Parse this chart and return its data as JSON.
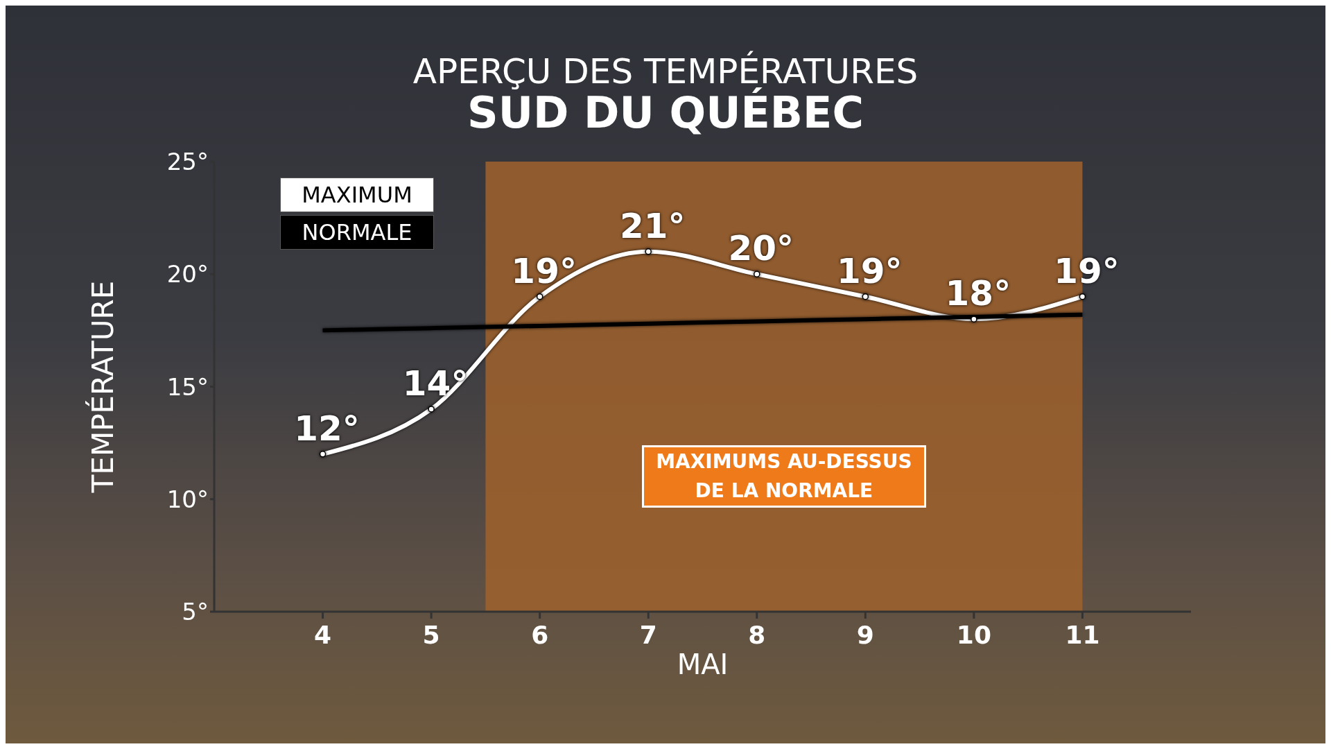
{
  "chart_data": {
    "type": "line",
    "title": "APERÇU DES TEMPÉRATURES",
    "subtitle": "SUD DU QUÉBEC",
    "xlabel": "MAI",
    "ylabel": "TEMPÉRATURE",
    "x": [
      4,
      5,
      6,
      7,
      8,
      9,
      10,
      11
    ],
    "xlim": [
      3,
      12
    ],
    "xticks": [
      4,
      5,
      6,
      7,
      8,
      9,
      10,
      11
    ],
    "ylim": [
      5,
      25
    ],
    "yticks": [
      {
        "value": 5,
        "label": "5°"
      },
      {
        "value": 10,
        "label": "10°"
      },
      {
        "value": 15,
        "label": "15°"
      },
      {
        "value": 20,
        "label": "20°"
      },
      {
        "value": 25,
        "label": "25°"
      }
    ],
    "series": [
      {
        "name": "MAXIMUM",
        "color": "#ffffff",
        "marker": "circle",
        "values": [
          12,
          14,
          19,
          21,
          20,
          19,
          18,
          19
        ],
        "value_labels": [
          "12°",
          "14°",
          "19°",
          "21°",
          "20°",
          "19°",
          "18°",
          "19°"
        ]
      },
      {
        "name": "NORMALE",
        "color": "#000000",
        "marker": "none",
        "values": [
          17.5,
          17.6,
          17.7,
          17.8,
          17.9,
          18.0,
          18.1,
          18.2
        ]
      }
    ],
    "bands": [
      {
        "axis": "x",
        "from": 5.5,
        "to": 11,
        "label": "MAXIMUMS AU-DESSUS DE LA NORMALE",
        "color": "#a0612c"
      }
    ],
    "legend": "top left",
    "line_style": "solid"
  }
}
